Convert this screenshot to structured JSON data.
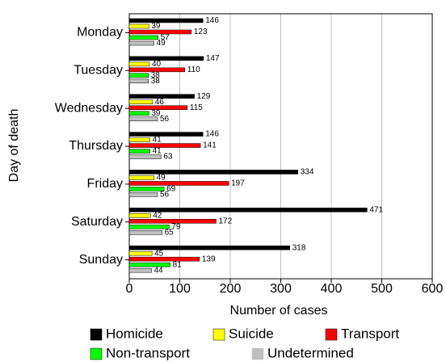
{
  "chart_data": {
    "type": "bar",
    "orientation": "horizontal",
    "categories": [
      "Monday",
      "Tuesday",
      "Wednesday",
      "Thursday",
      "Friday",
      "Saturday",
      "Sunday"
    ],
    "series": [
      {
        "name": "Homicide",
        "color": "#000000",
        "values": [
          146,
          147,
          129,
          146,
          334,
          471,
          318
        ]
      },
      {
        "name": "Suicide",
        "color": "#ffff00",
        "values": [
          39,
          40,
          46,
          41,
          49,
          42,
          45
        ]
      },
      {
        "name": "Transport",
        "color": "#ff0000",
        "values": [
          123,
          110,
          115,
          141,
          197,
          172,
          139
        ]
      },
      {
        "name": "Non-transport",
        "color": "#00ff00",
        "values": [
          57,
          38,
          39,
          41,
          69,
          79,
          81
        ]
      },
      {
        "name": "Undetermined",
        "color": "#c0c0c0",
        "values": [
          49,
          38,
          56,
          63,
          56,
          65,
          44
        ]
      }
    ],
    "xlim": [
      0,
      600
    ],
    "xticks": [
      0,
      100,
      200,
      300,
      400,
      500,
      600
    ],
    "xlabel": "Number of cases",
    "ylabel": "Day of death",
    "grid": true,
    "legend": "bottom"
  }
}
